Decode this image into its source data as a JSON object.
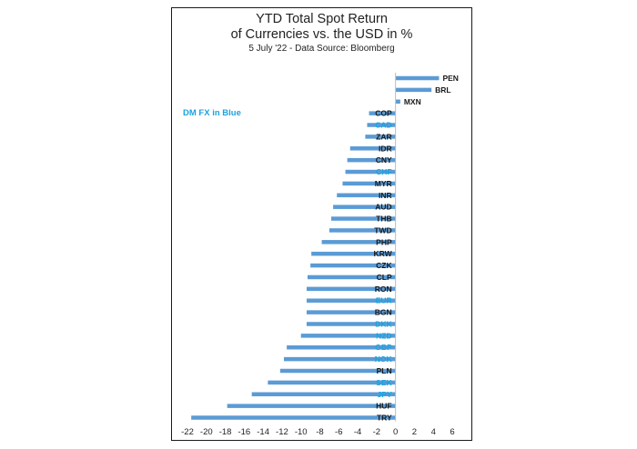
{
  "chart_data": {
    "type": "bar",
    "orientation": "horizontal",
    "title": "YTD Total Spot Return\nof Currencies vs. the USD in %",
    "subtitle": "5 July '22 - Data Source: Bloomberg",
    "annotation": "DM FX in Blue",
    "xlim": [
      -22,
      6
    ],
    "xticks": [
      -22,
      -20,
      -18,
      -16,
      -14,
      -12,
      -10,
      -8,
      -6,
      -4,
      -2,
      0,
      2,
      4,
      6
    ],
    "grid": false,
    "bar_color": "#5b9bd5",
    "label_color_em": "#1a1a1a",
    "label_color_dm": "#1aa3e0",
    "categories": [
      "PEN",
      "BRL",
      "MXN",
      "COP",
      "CAD",
      "ZAR",
      "IDR",
      "CNY",
      "CHF",
      "MYR",
      "INR",
      "AUD",
      "THB",
      "TWD",
      "PHP",
      "KRW",
      "CZK",
      "CLP",
      "RON",
      "EUR",
      "BGN",
      "DKK",
      "NZD",
      "GBP",
      "NOK",
      "PLN",
      "SEK",
      "JPY",
      "HUF",
      "TRY"
    ],
    "values": [
      4.6,
      3.8,
      0.5,
      -2.8,
      -3.0,
      -3.2,
      -4.8,
      -5.1,
      -5.3,
      -5.6,
      -6.2,
      -6.6,
      -6.8,
      -7.0,
      -7.8,
      -8.9,
      -9.0,
      -9.3,
      -9.4,
      -9.4,
      -9.4,
      -9.4,
      -10.0,
      -11.5,
      -11.8,
      -12.2,
      -13.5,
      -15.2,
      -17.8,
      -21.6
    ],
    "dm": [
      false,
      false,
      false,
      false,
      true,
      false,
      false,
      false,
      true,
      false,
      false,
      false,
      false,
      false,
      false,
      false,
      false,
      false,
      false,
      true,
      false,
      true,
      true,
      true,
      true,
      false,
      true,
      true,
      false,
      false
    ]
  }
}
